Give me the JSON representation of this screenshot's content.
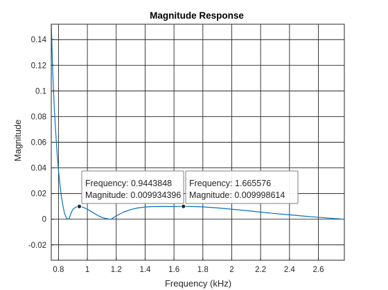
{
  "chart_data": {
    "type": "line",
    "title": "Magnitude Response",
    "xlabel": "Frequency (kHz)",
    "ylabel": "Magnitude",
    "xlim": [
      0.75,
      2.78
    ],
    "ylim": [
      -0.032,
      0.152
    ],
    "xticks": [
      0.8,
      1,
      1.2,
      1.4,
      1.6,
      1.8,
      2,
      2.2,
      2.4,
      2.6
    ],
    "xtick_labels": [
      "0.8",
      "1",
      "1.2",
      "1.4",
      "1.6",
      "1.8",
      "2",
      "2.2",
      "2.4",
      "2.6"
    ],
    "yticks": [
      -0.02,
      0,
      0.02,
      0.04,
      0.06,
      0.08,
      0.1,
      0.12,
      0.14
    ],
    "ytick_labels": [
      "-0.02",
      "0",
      "0.02",
      "0.04",
      "0.06",
      "0.08",
      "0.1",
      "0.12",
      "0.14"
    ],
    "grid": true,
    "line_color": "#0072BD",
    "series": [
      {
        "x": [
          0.75,
          0.76,
          0.77,
          0.78,
          0.79,
          0.8,
          0.81,
          0.82,
          0.83,
          0.84,
          0.85,
          0.86,
          0.87,
          0.875,
          0.88,
          0.89,
          0.9,
          0.92,
          0.9443848,
          0.97,
          1.0,
          1.03,
          1.06,
          1.09,
          1.12,
          1.15,
          1.165,
          1.18,
          1.21,
          1.25,
          1.3,
          1.35,
          1.4,
          1.45,
          1.5,
          1.55,
          1.6,
          1.665576,
          1.72,
          1.8,
          1.9,
          2.0,
          2.1,
          2.2,
          2.3,
          2.4,
          2.5,
          2.6,
          2.7,
          2.78
        ],
        "y": [
          0.152,
          0.115,
          0.089,
          0.069,
          0.052,
          0.038,
          0.027,
          0.018,
          0.011,
          0.0055,
          0.002,
          0.0004,
          0.0,
          0.0006,
          0.0025,
          0.0055,
          0.0078,
          0.0094,
          0.009934396,
          0.0093,
          0.0078,
          0.0058,
          0.0037,
          0.0019,
          0.0007,
          0.0001,
          0.0,
          0.0012,
          0.0032,
          0.0055,
          0.0075,
          0.0088,
          0.0095,
          0.0098,
          0.0099,
          0.0099,
          0.0099,
          0.009998614,
          0.0099,
          0.0096,
          0.0088,
          0.0078,
          0.0067,
          0.0055,
          0.0044,
          0.0034,
          0.0024,
          0.0015,
          0.0006,
          0.0
        ]
      }
    ],
    "datatips": [
      {
        "frequency_label": "Frequency: 0.9443848",
        "magnitude_label": "Magnitude: 0.009934396",
        "x": 0.9443848,
        "y": 0.009934396
      },
      {
        "frequency_label": "Frequency: 1.665576",
        "magnitude_label": "Magnitude: 0.009998614",
        "x": 1.665576,
        "y": 0.009998614
      }
    ]
  }
}
